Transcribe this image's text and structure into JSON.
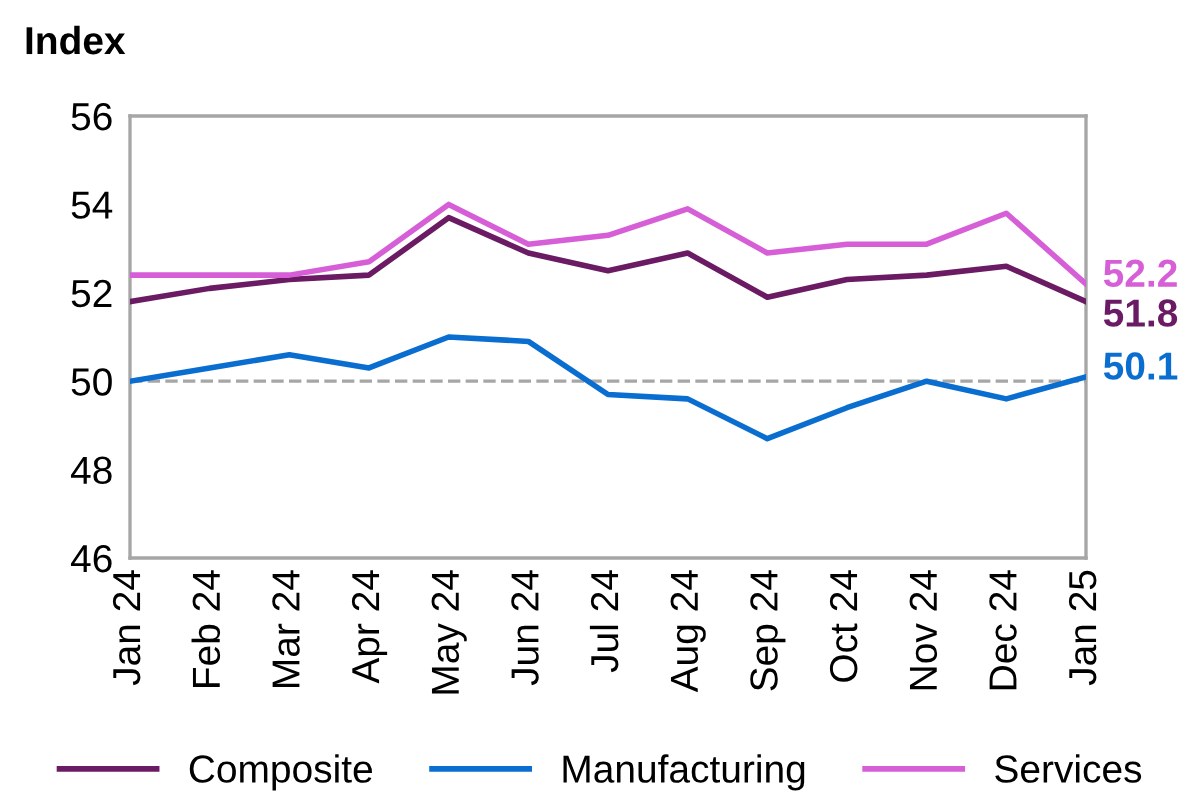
{
  "chart_data": {
    "type": "line",
    "ylabel": "Index",
    "categories": [
      "Jan 24",
      "Feb 24",
      "Mar 24",
      "Apr 24",
      "May 24",
      "Jun 24",
      "Jul 24",
      "Aug 24",
      "Sep 24",
      "Oct 24",
      "Nov 24",
      "Dec 24",
      "Jan 25"
    ],
    "series": [
      {
        "name": "Composite",
        "color": "#6a1b63",
        "values": [
          51.8,
          52.1,
          52.3,
          52.4,
          53.7,
          52.9,
          52.5,
          52.9,
          51.9,
          52.3,
          52.4,
          52.6,
          51.8
        ],
        "value_labels": [
          null,
          null,
          null,
          null,
          null,
          null,
          null,
          null,
          null,
          null,
          null,
          null,
          "51.8"
        ]
      },
      {
        "name": "Manufacturing",
        "color": "#0a6ed1",
        "values": [
          50.0,
          50.3,
          50.6,
          50.3,
          51.0,
          50.9,
          49.7,
          49.6,
          48.7,
          49.4,
          50.0,
          49.6,
          50.1
        ],
        "value_labels": [
          null,
          null,
          null,
          null,
          null,
          null,
          null,
          null,
          null,
          null,
          null,
          null,
          "50.1"
        ]
      },
      {
        "name": "Services",
        "color": "#d65fd8",
        "values": [
          52.4,
          52.4,
          52.4,
          52.7,
          54.0,
          53.1,
          53.3,
          53.9,
          52.9,
          53.1,
          53.1,
          53.8,
          52.2
        ],
        "value_labels": [
          null,
          null,
          null,
          null,
          null,
          null,
          null,
          null,
          null,
          null,
          null,
          null,
          "52.2"
        ]
      }
    ],
    "ylim": [
      46,
      56
    ],
    "yticks": [
      46,
      48,
      50,
      52,
      54,
      56
    ],
    "ref_lines": [
      {
        "axis": "y",
        "value": 50,
        "color": "#a6a6a6",
        "line_style": "dashed"
      }
    ],
    "grid": false,
    "legend": "bottom",
    "marker": "none",
    "line_style": "solid"
  }
}
